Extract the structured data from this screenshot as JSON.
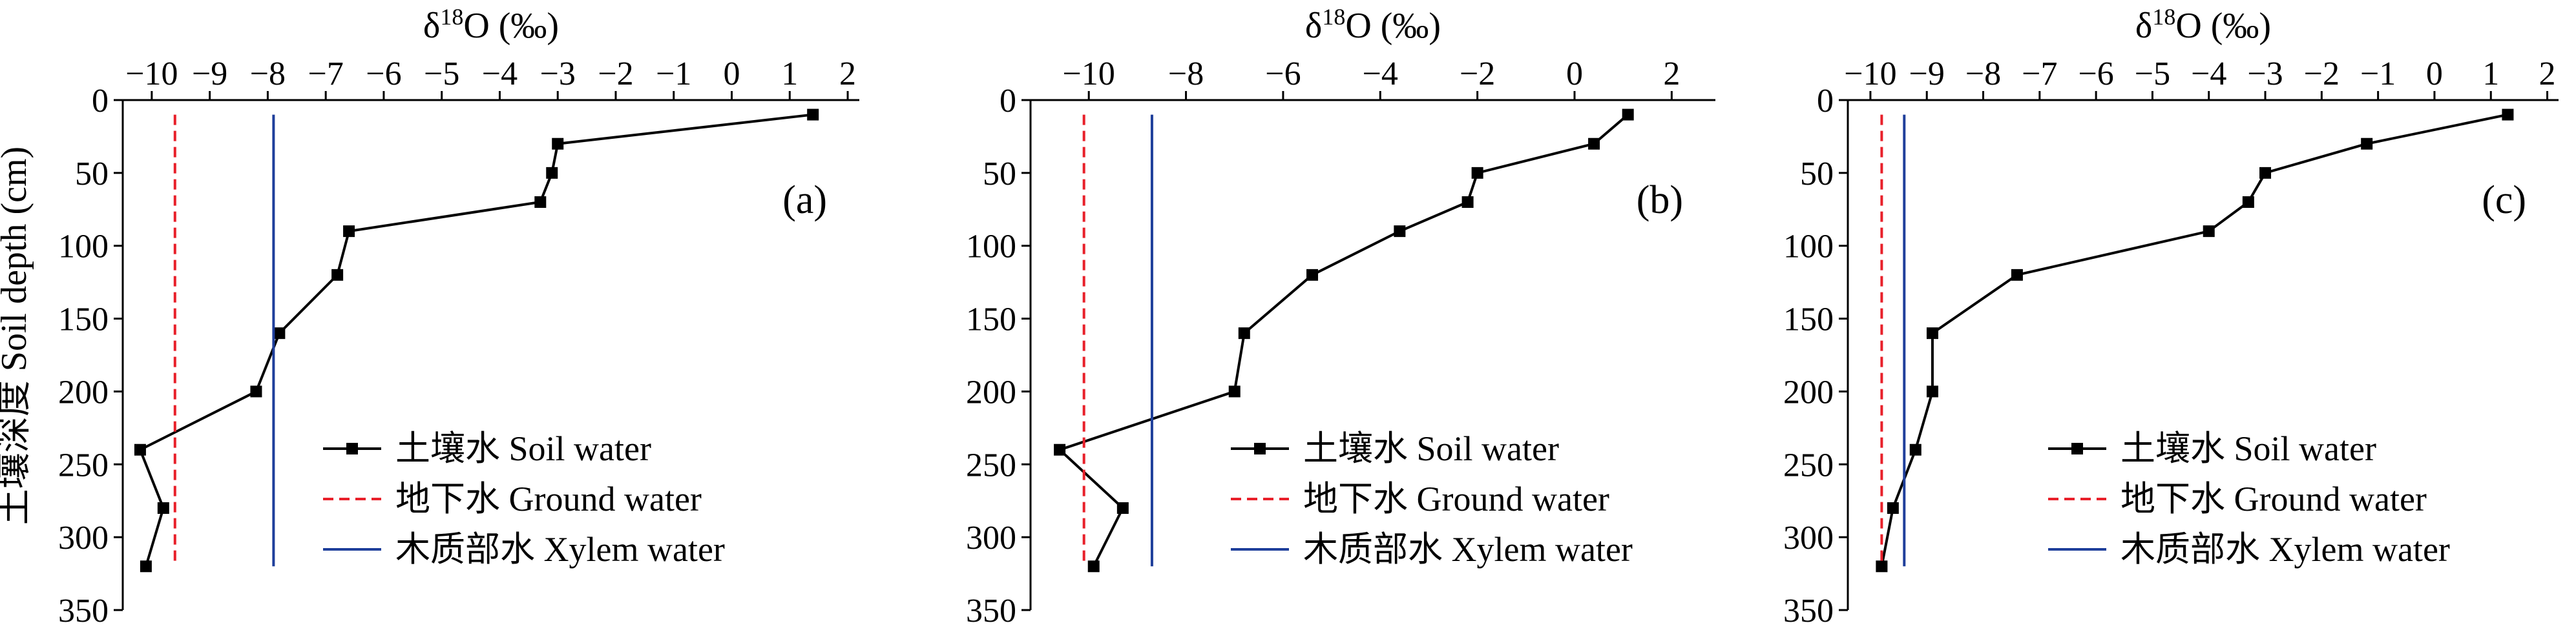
{
  "figure": {
    "ylabel": "土壤深度 Soil depth (cm)"
  },
  "colors": {
    "soil": "#000000",
    "ground": "#e8202a",
    "xylem": "#1f3f9b"
  },
  "legend": {
    "soil": "土壤水 Soil water",
    "ground": "地下水 Ground water",
    "xylem": "木质部水 Xylem water"
  },
  "chart_data": [
    {
      "type": "line",
      "label": "(a)",
      "xlabel": "δ18O (‰)",
      "xlim": [
        -10.5,
        2.2
      ],
      "xticks": [
        -10,
        -9,
        -8,
        -7,
        -6,
        -5,
        -4,
        -3,
        -2,
        -1,
        0,
        1,
        2
      ],
      "ylim": [
        0,
        350
      ],
      "yticks": [
        0,
        50,
        100,
        150,
        200,
        250,
        300,
        350
      ],
      "series": [
        {
          "key": "soil",
          "x": [
            1.4,
            -3.0,
            -3.1,
            -3.3,
            -6.6,
            -6.8,
            -7.8,
            -8.2,
            -10.2,
            -9.8,
            -10.1
          ],
          "y": [
            10,
            30,
            50,
            70,
            90,
            120,
            160,
            200,
            240,
            280,
            320
          ]
        },
        {
          "key": "ground",
          "x": [
            -9.6,
            -9.6
          ],
          "y": [
            10,
            320
          ]
        },
        {
          "key": "xylem",
          "x": [
            -7.9,
            -7.9
          ],
          "y": [
            10,
            320
          ]
        }
      ]
    },
    {
      "type": "line",
      "label": "(b)",
      "xlabel": "δ18O (‰)",
      "xlim": [
        -11.2,
        2.9
      ],
      "xticks": [
        -10,
        -8,
        -6,
        -4,
        -2,
        0,
        2
      ],
      "ylim": [
        0,
        350
      ],
      "yticks": [
        0,
        50,
        100,
        150,
        200,
        250,
        300,
        350
      ],
      "series": [
        {
          "key": "soil",
          "x": [
            1.1,
            0.4,
            -2.0,
            -2.2,
            -3.6,
            -5.4,
            -6.8,
            -7.0,
            -10.6,
            -9.3,
            -9.9
          ],
          "y": [
            10,
            30,
            50,
            70,
            90,
            120,
            160,
            200,
            240,
            280,
            320
          ]
        },
        {
          "key": "ground",
          "x": [
            -10.1,
            -10.1
          ],
          "y": [
            10,
            320
          ]
        },
        {
          "key": "xylem",
          "x": [
            -8.7,
            -8.7
          ],
          "y": [
            10,
            320
          ]
        }
      ]
    },
    {
      "type": "line",
      "label": "(c)",
      "xlabel": "δ18O (‰)",
      "xlim": [
        -10.4,
        2.2
      ],
      "xticks": [
        -10,
        -9,
        -8,
        -7,
        -6,
        -5,
        -4,
        -3,
        -2,
        -1,
        0,
        1,
        2
      ],
      "ylim": [
        0,
        350
      ],
      "yticks": [
        0,
        50,
        100,
        150,
        200,
        250,
        300,
        350
      ],
      "series": [
        {
          "key": "soil",
          "x": [
            1.3,
            -1.2,
            -3.0,
            -3.3,
            -4.0,
            -7.4,
            -8.9,
            -8.9,
            -9.2,
            -9.6,
            -9.8
          ],
          "y": [
            10,
            30,
            50,
            70,
            90,
            120,
            160,
            200,
            240,
            280,
            320
          ]
        },
        {
          "key": "ground",
          "x": [
            -9.8,
            -9.8
          ],
          "y": [
            10,
            320
          ]
        },
        {
          "key": "xylem",
          "x": [
            -9.4,
            -9.4
          ],
          "y": [
            10,
            320
          ]
        }
      ]
    }
  ]
}
